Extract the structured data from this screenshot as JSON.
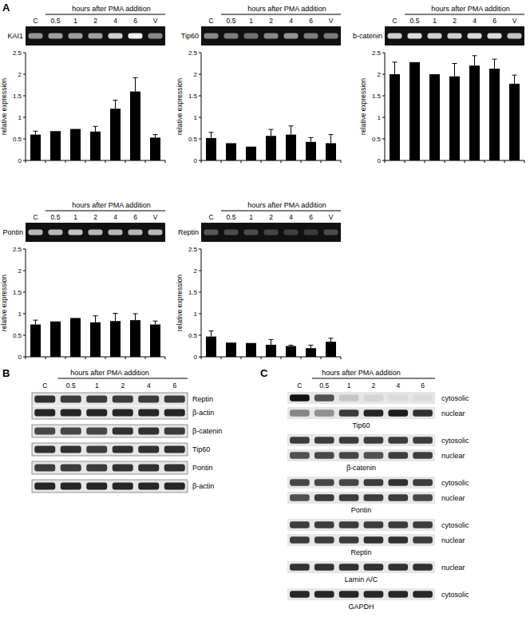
{
  "chart_data": [
    {
      "type": "bar",
      "panel": "A",
      "title": "KAI1",
      "subtitle": "hours after PMA addition",
      "y_label": "relative expression",
      "categories": [
        "C",
        "0.5",
        "1",
        "2",
        "4",
        "6",
        "V"
      ],
      "values": [
        0.6,
        0.68,
        0.73,
        0.67,
        1.2,
        1.6,
        0.53
      ],
      "errors": [
        0.08,
        null,
        null,
        0.12,
        0.2,
        0.32,
        0.07
      ],
      "gel_bands": [
        0.55,
        0.6,
        0.6,
        0.6,
        0.8,
        0.95,
        0.5
      ],
      "color": "#000000",
      "ylim": [
        0,
        2.5
      ],
      "yticks": [
        0,
        0.5,
        1,
        1.5,
        2,
        2.5
      ]
    },
    {
      "type": "bar",
      "title": "Tip60",
      "subtitle": "hours after PMA addition",
      "y_label": "relative expression",
      "categories": [
        "C",
        "0.5",
        "1",
        "2",
        "4",
        "6",
        "V"
      ],
      "values": [
        0.52,
        0.4,
        0.32,
        0.57,
        0.6,
        0.43,
        0.4
      ],
      "errors": [
        0.13,
        null,
        null,
        0.15,
        0.2,
        0.1,
        0.2
      ],
      "gel_bands": [
        0.5,
        0.45,
        0.4,
        0.5,
        0.55,
        0.45,
        0.45
      ],
      "color": "#000000",
      "ylim": [
        0,
        2.5
      ],
      "yticks": [
        0,
        0.5,
        1,
        1.5,
        2,
        2.5
      ]
    },
    {
      "type": "bar",
      "title": "b-catenin",
      "subtitle": "hours after PMA addition",
      "y_label": "relative expression",
      "categories": [
        "C",
        "0.5",
        "1",
        "2",
        "4",
        "6",
        "V"
      ],
      "values": [
        2.0,
        2.28,
        2.0,
        1.95,
        2.2,
        2.13,
        1.78
      ],
      "errors": [
        0.28,
        null,
        null,
        0.3,
        0.23,
        0.22,
        0.2
      ],
      "gel_bands": [
        0.8,
        0.85,
        0.8,
        0.8,
        0.85,
        0.85,
        0.75
      ],
      "color": "#000000",
      "ylim": [
        0,
        2.5
      ],
      "yticks": [
        0,
        0.5,
        1,
        1.5,
        2,
        2.5
      ]
    },
    {
      "type": "bar",
      "title": "Pontin",
      "subtitle": "hours after PMA addition",
      "y_label": "relative expression",
      "categories": [
        "C",
        "0.5",
        "1",
        "2",
        "4",
        "6",
        "V"
      ],
      "values": [
        0.75,
        0.82,
        0.9,
        0.8,
        0.83,
        0.85,
        0.75
      ],
      "errors": [
        0.1,
        null,
        null,
        0.15,
        0.18,
        0.15,
        0.08
      ],
      "gel_bands": [
        0.7,
        0.7,
        0.75,
        0.7,
        0.7,
        0.7,
        0.7
      ],
      "color": "#000000",
      "ylim": [
        0,
        2.5
      ],
      "yticks": [
        0,
        0.5,
        1,
        1.5,
        2,
        2.5
      ]
    },
    {
      "type": "bar",
      "title": "Reptin",
      "subtitle": "hours after PMA addition",
      "y_label": "relative expression",
      "categories": [
        "C",
        "0.5",
        "1",
        "2",
        "4",
        "6",
        "V"
      ],
      "values": [
        0.47,
        0.33,
        0.32,
        0.28,
        0.25,
        0.2,
        0.35
      ],
      "errors": [
        0.13,
        null,
        null,
        0.12,
        0.02,
        0.07,
        0.08
      ],
      "gel_bands": [
        0.3,
        0.25,
        0.25,
        0.22,
        0.2,
        0.18,
        0.25
      ],
      "color": "#000000",
      "ylim": [
        0,
        2.5
      ],
      "yticks": [
        0,
        0.5,
        1,
        1.5,
        2,
        2.5
      ]
    }
  ],
  "panel_b": {
    "label": "B",
    "header": "hours after PMA addition",
    "lanes": [
      "C",
      "0.5",
      "1",
      "2",
      "4",
      "6"
    ],
    "groups": [
      {
        "rows": [
          {
            "label": "Reptin",
            "bands": [
              0.85,
              0.8,
              0.8,
              0.8,
              0.8,
              0.8
            ]
          },
          {
            "label": "β-actin",
            "bands": [
              0.9,
              0.9,
              0.9,
              0.9,
              0.9,
              0.9
            ]
          }
        ]
      },
      {
        "rows": [
          {
            "label": "β-catenin",
            "bands": [
              0.75,
              0.75,
              0.75,
              0.85,
              0.85,
              0.8
            ]
          }
        ]
      },
      {
        "rows": [
          {
            "label": "Tip60",
            "bands": [
              0.85,
              0.85,
              0.8,
              0.85,
              0.85,
              0.85
            ]
          }
        ]
      },
      {
        "rows": [
          {
            "label": "Pontin",
            "bands": [
              0.8,
              0.8,
              0.8,
              0.85,
              0.85,
              0.85
            ]
          }
        ]
      },
      {
        "rows": [
          {
            "label": "β-actin",
            "bands": [
              0.9,
              0.9,
              0.9,
              0.9,
              0.9,
              0.9
            ]
          }
        ]
      }
    ]
  },
  "panel_c": {
    "label": "C",
    "header": "hours after PMA addition",
    "lanes": [
      "C",
      "0.5",
      "1",
      "2",
      "4",
      "6"
    ],
    "groups": [
      {
        "protein": "Tip60",
        "rows": [
          {
            "fraction": "cytosolic",
            "bands": [
              1.0,
              0.7,
              0.15,
              0.08,
              0.05,
              0.05
            ]
          },
          {
            "fraction": "nuclear",
            "bands": [
              0.45,
              0.4,
              0.8,
              0.9,
              0.95,
              0.85
            ]
          }
        ]
      },
      {
        "protein": "β-catenin",
        "rows": [
          {
            "fraction": "cytosolic",
            "bands": [
              0.8,
              0.8,
              0.8,
              0.8,
              0.8,
              0.8
            ]
          },
          {
            "fraction": "nuclear",
            "bands": [
              0.7,
              0.75,
              0.75,
              0.7,
              0.8,
              0.8
            ]
          }
        ]
      },
      {
        "protein": "Pontin",
        "rows": [
          {
            "fraction": "cytosolic",
            "bands": [
              0.75,
              0.75,
              0.75,
              0.8,
              0.85,
              0.8
            ]
          },
          {
            "fraction": "nuclear",
            "bands": [
              0.7,
              0.8,
              0.8,
              0.8,
              0.8,
              0.75
            ]
          }
        ]
      },
      {
        "protein": "Reptin",
        "rows": [
          {
            "fraction": "cytosolic",
            "bands": [
              0.8,
              0.8,
              0.8,
              0.8,
              0.8,
              0.8
            ]
          },
          {
            "fraction": "nuclear",
            "bands": [
              0.8,
              0.8,
              0.8,
              0.85,
              0.85,
              0.8
            ]
          }
        ]
      },
      {
        "protein": "Lamin A/C",
        "rows": [
          {
            "fraction": "nuclear",
            "bands": [
              0.85,
              0.85,
              0.85,
              0.85,
              0.85,
              0.85
            ]
          }
        ]
      },
      {
        "protein": "GAPDH",
        "rows": [
          {
            "fraction": "cytosolic",
            "bands": [
              0.9,
              0.9,
              0.9,
              0.9,
              0.9,
              0.9
            ]
          }
        ]
      }
    ]
  }
}
